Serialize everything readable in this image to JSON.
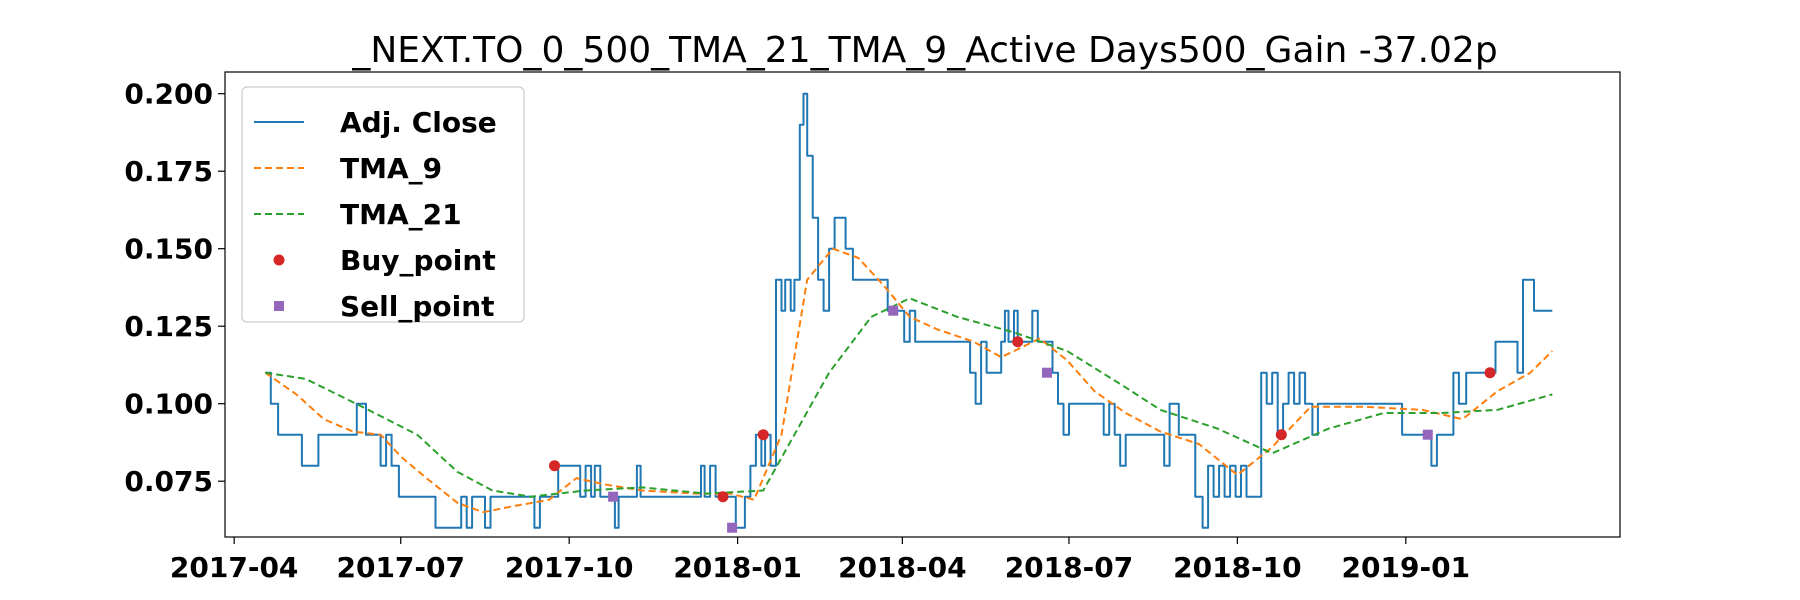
{
  "chart_data": {
    "type": "line",
    "title": "_NEXT.TO_0_500_TMA_21_TMA_9_Active Days500_Gain -37.02p",
    "xlabel": "",
    "ylabel": "",
    "xlim": [
      "2017-03-27",
      "2019-04-28"
    ],
    "ylim": [
      0.057,
      0.207
    ],
    "x_ticks": [
      "2017-04",
      "2017-07",
      "2017-10",
      "2018-01",
      "2018-04",
      "2018-07",
      "2018-10",
      "2019-01"
    ],
    "y_ticks": [
      "0.075",
      "0.100",
      "0.125",
      "0.150",
      "0.175",
      "0.200"
    ],
    "grid": false,
    "legend_position": "top-left",
    "series": [
      {
        "name": "Adj. Close",
        "style": "solid",
        "color": "#1f77b4",
        "points": [
          [
            "2017-04-18",
            0.11
          ],
          [
            "2017-04-21",
            0.1
          ],
          [
            "2017-04-25",
            0.09
          ],
          [
            "2017-05-05",
            0.09
          ],
          [
            "2017-05-08",
            0.08
          ],
          [
            "2017-05-15",
            0.08
          ],
          [
            "2017-05-17",
            0.09
          ],
          [
            "2017-06-05",
            0.09
          ],
          [
            "2017-06-07",
            0.1
          ],
          [
            "2017-06-12",
            0.09
          ],
          [
            "2017-06-18",
            0.09
          ],
          [
            "2017-06-20",
            0.08
          ],
          [
            "2017-06-23",
            0.09
          ],
          [
            "2017-06-26",
            0.08
          ],
          [
            "2017-06-30",
            0.07
          ],
          [
            "2017-07-17",
            0.07
          ],
          [
            "2017-07-20",
            0.06
          ],
          [
            "2017-08-01",
            0.06
          ],
          [
            "2017-08-03",
            0.07
          ],
          [
            "2017-08-06",
            0.06
          ],
          [
            "2017-08-09",
            0.07
          ],
          [
            "2017-08-14",
            0.07
          ],
          [
            "2017-08-16",
            0.06
          ],
          [
            "2017-08-19",
            0.07
          ],
          [
            "2017-09-10",
            0.07
          ],
          [
            "2017-09-12",
            0.06
          ],
          [
            "2017-09-15",
            0.07
          ],
          [
            "2017-09-22",
            0.07
          ],
          [
            "2017-09-25",
            0.08
          ],
          [
            "2017-10-05",
            0.08
          ],
          [
            "2017-10-07",
            0.07
          ],
          [
            "2017-10-10",
            0.08
          ],
          [
            "2017-10-13",
            0.07
          ],
          [
            "2017-10-15",
            0.08
          ],
          [
            "2017-10-18",
            0.07
          ],
          [
            "2017-10-22",
            0.07
          ],
          [
            "2017-10-26",
            0.06
          ],
          [
            "2017-10-28",
            0.07
          ],
          [
            "2017-11-05",
            0.07
          ],
          [
            "2017-11-07",
            0.08
          ],
          [
            "2017-11-09",
            0.07
          ],
          [
            "2017-12-10",
            0.07
          ],
          [
            "2017-12-12",
            0.08
          ],
          [
            "2017-12-14",
            0.07
          ],
          [
            "2017-12-17",
            0.08
          ],
          [
            "2017-12-20",
            0.07
          ],
          [
            "2017-12-28",
            0.07
          ],
          [
            "2017-12-31",
            0.06
          ],
          [
            "2018-01-05",
            0.07
          ],
          [
            "2018-01-08",
            0.08
          ],
          [
            "2018-01-11",
            0.09
          ],
          [
            "2018-01-14",
            0.08
          ],
          [
            "2018-01-16",
            0.09
          ],
          [
            "2018-01-19",
            0.08
          ],
          [
            "2018-01-22",
            0.14
          ],
          [
            "2018-01-25",
            0.13
          ],
          [
            "2018-01-27",
            0.14
          ],
          [
            "2018-01-30",
            0.13
          ],
          [
            "2018-02-01",
            0.14
          ],
          [
            "2018-02-04",
            0.19
          ],
          [
            "2018-02-06",
            0.2
          ],
          [
            "2018-02-08",
            0.18
          ],
          [
            "2018-02-11",
            0.16
          ],
          [
            "2018-02-14",
            0.14
          ],
          [
            "2018-02-17",
            0.13
          ],
          [
            "2018-02-20",
            0.15
          ],
          [
            "2018-02-23",
            0.16
          ],
          [
            "2018-03-01",
            0.15
          ],
          [
            "2018-03-05",
            0.14
          ],
          [
            "2018-03-21",
            0.14
          ],
          [
            "2018-03-24",
            0.13
          ],
          [
            "2018-03-30",
            0.13
          ],
          [
            "2018-04-02",
            0.12
          ],
          [
            "2018-04-05",
            0.13
          ],
          [
            "2018-04-08",
            0.12
          ],
          [
            "2018-04-14",
            0.12
          ],
          [
            "2018-04-17",
            0.12
          ],
          [
            "2018-05-05",
            0.12
          ],
          [
            "2018-05-08",
            0.11
          ],
          [
            "2018-05-11",
            0.1
          ],
          [
            "2018-05-14",
            0.12
          ],
          [
            "2018-05-17",
            0.11
          ],
          [
            "2018-05-22",
            0.11
          ],
          [
            "2018-05-25",
            0.12
          ],
          [
            "2018-05-27",
            0.13
          ],
          [
            "2018-05-29",
            0.12
          ],
          [
            "2018-06-01",
            0.13
          ],
          [
            "2018-06-03",
            0.12
          ],
          [
            "2018-06-08",
            0.12
          ],
          [
            "2018-06-11",
            0.13
          ],
          [
            "2018-06-14",
            0.12
          ],
          [
            "2018-06-19",
            0.12
          ],
          [
            "2018-06-22",
            0.11
          ],
          [
            "2018-06-25",
            0.1
          ],
          [
            "2018-06-28",
            0.09
          ],
          [
            "2018-07-01",
            0.1
          ],
          [
            "2018-07-18",
            0.1
          ],
          [
            "2018-07-20",
            0.09
          ],
          [
            "2018-07-23",
            0.1
          ],
          [
            "2018-07-26",
            0.09
          ],
          [
            "2018-07-29",
            0.08
          ],
          [
            "2018-08-01",
            0.09
          ],
          [
            "2018-08-20",
            0.09
          ],
          [
            "2018-08-22",
            0.08
          ],
          [
            "2018-08-25",
            0.1
          ],
          [
            "2018-08-30",
            0.09
          ],
          [
            "2018-09-05",
            0.09
          ],
          [
            "2018-09-08",
            0.07
          ],
          [
            "2018-09-12",
            0.06
          ],
          [
            "2018-09-15",
            0.08
          ],
          [
            "2018-09-18",
            0.07
          ],
          [
            "2018-09-21",
            0.08
          ],
          [
            "2018-09-24",
            0.07
          ],
          [
            "2018-09-27",
            0.08
          ],
          [
            "2018-09-30",
            0.07
          ],
          [
            "2018-10-03",
            0.08
          ],
          [
            "2018-10-06",
            0.07
          ],
          [
            "2018-10-11",
            0.07
          ],
          [
            "2018-10-14",
            0.11
          ],
          [
            "2018-10-17",
            0.1
          ],
          [
            "2018-10-20",
            0.11
          ],
          [
            "2018-10-23",
            0.09
          ],
          [
            "2018-10-26",
            0.1
          ],
          [
            "2018-10-29",
            0.11
          ],
          [
            "2018-11-01",
            0.1
          ],
          [
            "2018-11-04",
            0.11
          ],
          [
            "2018-11-07",
            0.1
          ],
          [
            "2018-11-11",
            0.09
          ],
          [
            "2018-11-14",
            0.1
          ],
          [
            "2018-12-27",
            0.1
          ],
          [
            "2018-12-30",
            0.09
          ],
          [
            "2019-01-12",
            0.09
          ],
          [
            "2019-01-15",
            0.08
          ],
          [
            "2019-01-18",
            0.09
          ],
          [
            "2019-01-24",
            0.09
          ],
          [
            "2019-01-27",
            0.11
          ],
          [
            "2019-01-30",
            0.1
          ],
          [
            "2019-02-03",
            0.11
          ],
          [
            "2019-02-16",
            0.11
          ],
          [
            "2019-02-19",
            0.12
          ],
          [
            "2019-02-28",
            0.12
          ],
          [
            "2019-03-03",
            0.11
          ],
          [
            "2019-03-06",
            0.14
          ],
          [
            "2019-03-12",
            0.13
          ],
          [
            "2019-03-22",
            0.13
          ]
        ]
      },
      {
        "name": "TMA_9",
        "style": "dashed",
        "color": "#ff7f0e",
        "points": [
          [
            "2017-04-18",
            0.11
          ],
          [
            "2017-05-05",
            0.103
          ],
          [
            "2017-05-20",
            0.095
          ],
          [
            "2017-06-05",
            0.091
          ],
          [
            "2017-06-20",
            0.09
          ],
          [
            "2017-07-01",
            0.083
          ],
          [
            "2017-07-15",
            0.076
          ],
          [
            "2017-08-01",
            0.068
          ],
          [
            "2017-08-15",
            0.065
          ],
          [
            "2017-09-01",
            0.067
          ],
          [
            "2017-09-20",
            0.069
          ],
          [
            "2017-10-05",
            0.076
          ],
          [
            "2017-10-20",
            0.074
          ],
          [
            "2017-11-10",
            0.072
          ],
          [
            "2017-12-10",
            0.071
          ],
          [
            "2017-12-28",
            0.071
          ],
          [
            "2018-01-10",
            0.069
          ],
          [
            "2018-01-25",
            0.09
          ],
          [
            "2018-02-08",
            0.14
          ],
          [
            "2018-02-22",
            0.15
          ],
          [
            "2018-03-08",
            0.147
          ],
          [
            "2018-03-22",
            0.138
          ],
          [
            "2018-04-05",
            0.128
          ],
          [
            "2018-04-20",
            0.124
          ],
          [
            "2018-05-10",
            0.12
          ],
          [
            "2018-05-25",
            0.115
          ],
          [
            "2018-06-15",
            0.121
          ],
          [
            "2018-06-30",
            0.114
          ],
          [
            "2018-07-15",
            0.104
          ],
          [
            "2018-08-01",
            0.097
          ],
          [
            "2018-08-20",
            0.091
          ],
          [
            "2018-09-10",
            0.087
          ],
          [
            "2018-10-01",
            0.077
          ],
          [
            "2018-10-20",
            0.086
          ],
          [
            "2018-11-10",
            0.099
          ],
          [
            "2018-12-10",
            0.099
          ],
          [
            "2019-01-10",
            0.098
          ],
          [
            "2019-02-01",
            0.095
          ],
          [
            "2019-02-20",
            0.104
          ],
          [
            "2019-03-10",
            0.11
          ],
          [
            "2019-03-22",
            0.117
          ]
        ]
      },
      {
        "name": "TMA_21",
        "style": "dashed",
        "color": "#2ca02c",
        "points": [
          [
            "2017-04-18",
            0.11
          ],
          [
            "2017-05-10",
            0.108
          ],
          [
            "2017-06-10",
            0.099
          ],
          [
            "2017-07-10",
            0.09
          ],
          [
            "2017-08-01",
            0.078
          ],
          [
            "2017-08-20",
            0.072
          ],
          [
            "2017-09-10",
            0.07
          ],
          [
            "2017-10-10",
            0.072
          ],
          [
            "2017-11-10",
            0.073
          ],
          [
            "2017-12-15",
            0.071
          ],
          [
            "2018-01-15",
            0.072
          ],
          [
            "2018-02-01",
            0.09
          ],
          [
            "2018-02-20",
            0.11
          ],
          [
            "2018-03-15",
            0.128
          ],
          [
            "2018-04-05",
            0.134
          ],
          [
            "2018-05-01",
            0.128
          ],
          [
            "2018-06-01",
            0.123
          ],
          [
            "2018-06-30",
            0.117
          ],
          [
            "2018-07-30",
            0.106
          ],
          [
            "2018-08-20",
            0.098
          ],
          [
            "2018-09-20",
            0.092
          ],
          [
            "2018-10-20",
            0.084
          ],
          [
            "2018-11-20",
            0.092
          ],
          [
            "2018-12-20",
            0.097
          ],
          [
            "2019-01-20",
            0.097
          ],
          [
            "2019-02-20",
            0.098
          ],
          [
            "2019-03-22",
            0.103
          ]
        ]
      },
      {
        "name": "Buy_point",
        "style": "marker-circle",
        "color": "#d62728",
        "points": [
          [
            "2017-09-23",
            0.08
          ],
          [
            "2017-12-24",
            0.07
          ],
          [
            "2018-01-15",
            0.09
          ],
          [
            "2018-06-03",
            0.12
          ],
          [
            "2018-10-25",
            0.09
          ],
          [
            "2019-02-16",
            0.11
          ]
        ]
      },
      {
        "name": "Sell_point",
        "style": "marker-square",
        "color": "#9467bd",
        "points": [
          [
            "2017-10-25",
            0.07
          ],
          [
            "2017-12-29",
            0.06
          ],
          [
            "2018-03-27",
            0.13
          ],
          [
            "2018-06-19",
            0.11
          ],
          [
            "2019-01-13",
            0.09
          ]
        ]
      }
    ]
  }
}
